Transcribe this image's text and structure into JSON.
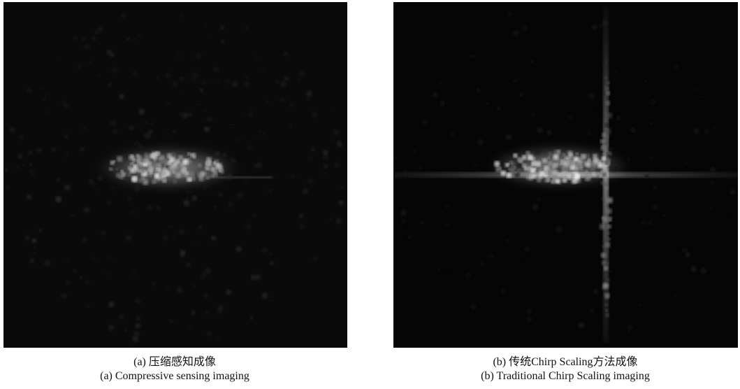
{
  "panels": [
    {
      "caption_cn": "(a) 压缩感知成像",
      "caption_en": "(a) Compressive sensing imaging"
    },
    {
      "caption_cn": "(b) 传统Chirp Scaling方法成像",
      "caption_en": "(b) Traditional Chirp Scaling imaging"
    }
  ]
}
